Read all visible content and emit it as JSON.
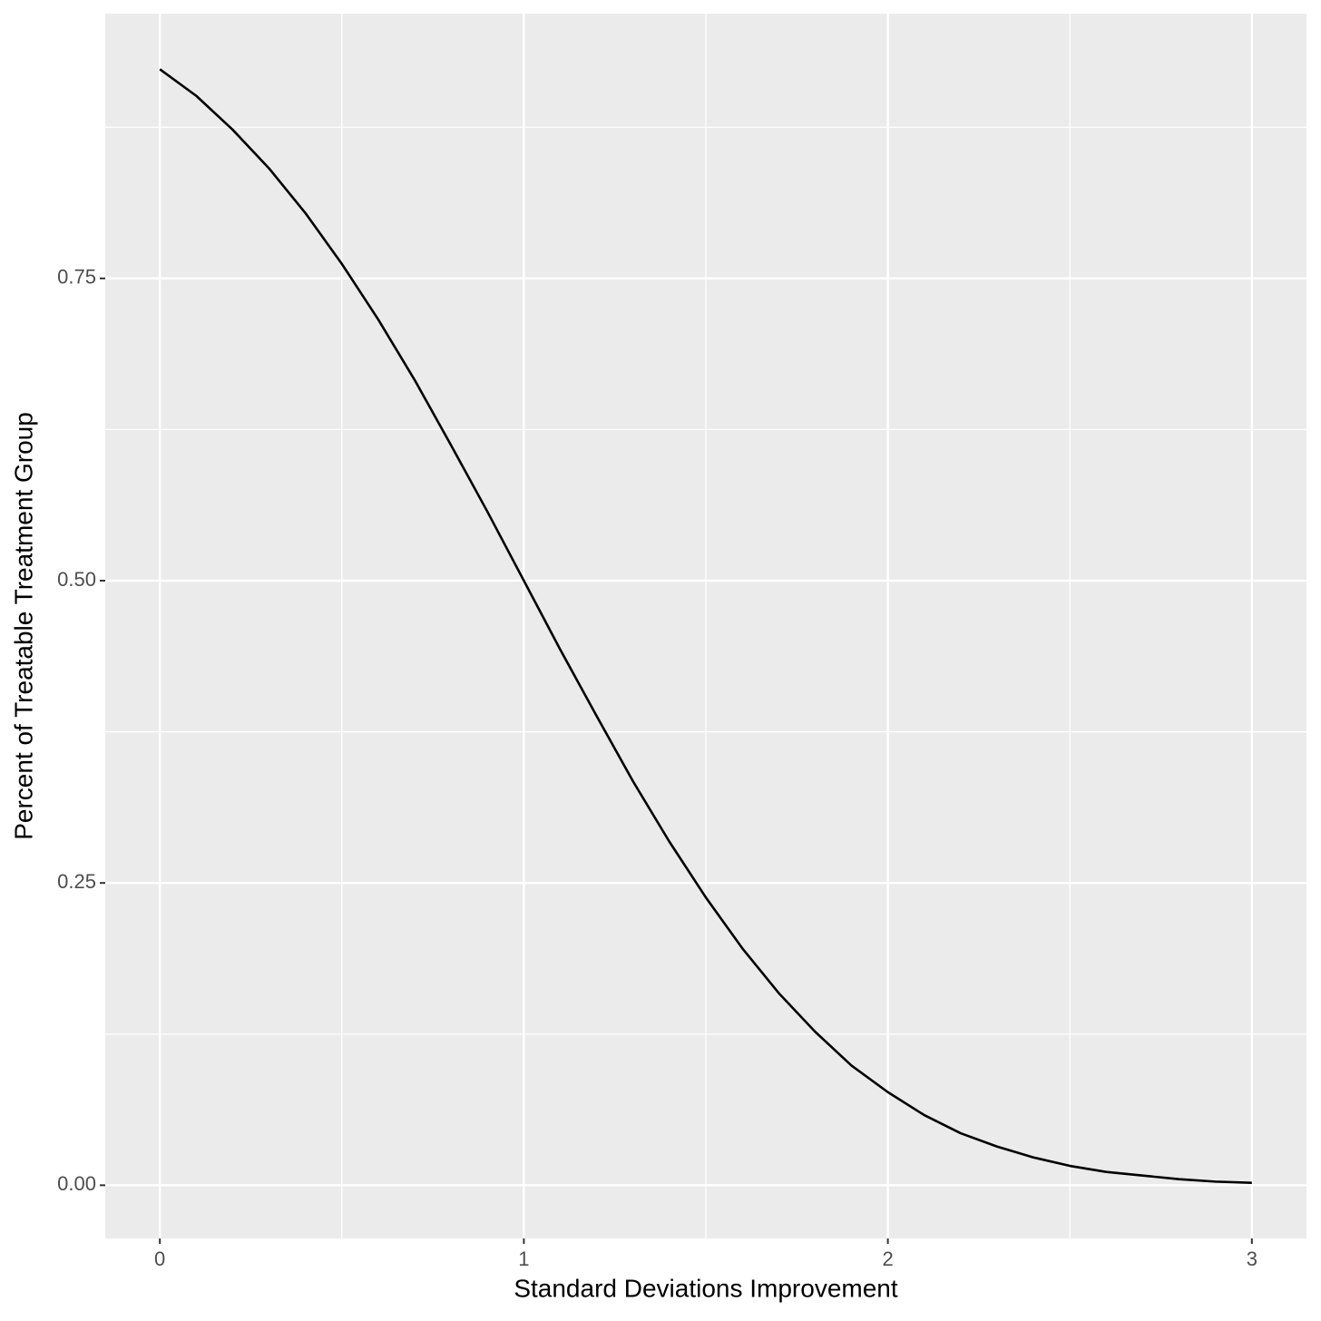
{
  "chart_data": {
    "type": "line",
    "x_label": "Standard Deviations Improvement",
    "y_label": "Percent of Treatable Treatment Group",
    "x": [
      0,
      0.1,
      0.2,
      0.3,
      0.4,
      0.5,
      0.6,
      0.7,
      0.8,
      0.9,
      1.0,
      1.1,
      1.2,
      1.3,
      1.4,
      1.5,
      1.6,
      1.7,
      1.8,
      1.9,
      2.0,
      2.1,
      2.2,
      2.3,
      2.4,
      2.5,
      2.6,
      2.7,
      2.8,
      2.9,
      3.0
    ],
    "values": [
      0.923,
      0.901,
      0.873,
      0.841,
      0.804,
      0.762,
      0.716,
      0.666,
      0.612,
      0.557,
      0.5,
      0.443,
      0.388,
      0.334,
      0.284,
      0.238,
      0.196,
      0.159,
      0.127,
      0.099,
      0.077,
      0.058,
      0.043,
      0.032,
      0.023,
      0.016,
      0.011,
      0.008,
      0.005,
      0.003,
      0.002
    ],
    "color": "#000000",
    "xlim": [
      -0.15,
      3.15
    ],
    "ylim": [
      -0.044,
      0.969
    ],
    "xticks": [
      0,
      1,
      2,
      3
    ],
    "yticks": [
      {
        "value": 0,
        "label": "0.00"
      },
      {
        "value": 0.25,
        "label": "0.25"
      },
      {
        "value": 0.5,
        "label": "0.50"
      },
      {
        "value": 0.75,
        "label": "0.75"
      }
    ],
    "grid": true,
    "minor_grid": true
  }
}
